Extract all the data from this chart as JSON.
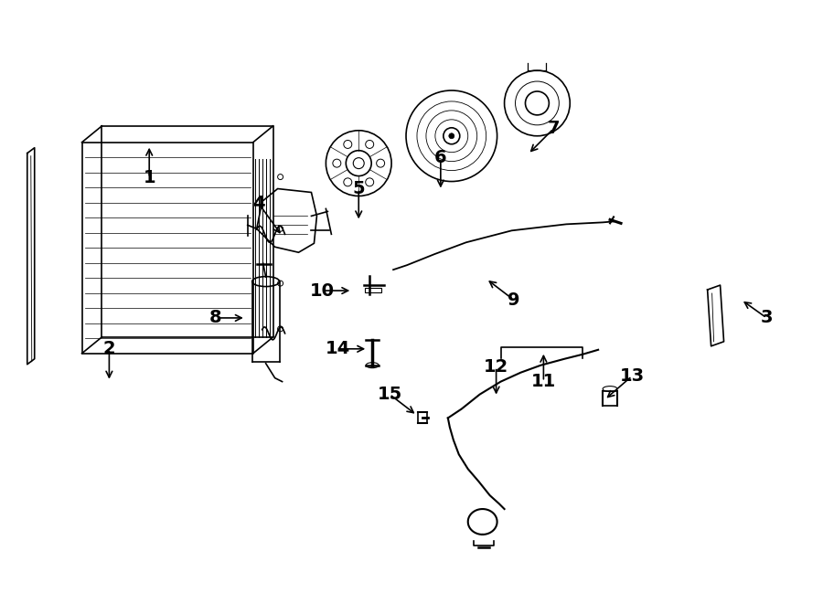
{
  "bg_color": "#ffffff",
  "line_color": "#000000",
  "figsize": [
    9.0,
    6.61
  ],
  "dpi": 100,
  "labels": [
    [
      "1",
      162,
      158,
      0,
      -28
    ],
    [
      "2",
      118,
      418,
      0,
      28
    ],
    [
      "3",
      812,
      328,
      20,
      -12
    ],
    [
      "4",
      308,
      258,
      -18,
      28
    ],
    [
      "5",
      392,
      242,
      0,
      28
    ],
    [
      "6",
      482,
      208,
      0,
      28
    ],
    [
      "7",
      578,
      168,
      20,
      20
    ],
    [
      "8",
      268,
      348,
      -25,
      0
    ],
    [
      "9",
      532,
      305,
      22,
      -15
    ],
    [
      "10",
      385,
      318,
      -25,
      0
    ],
    [
      "11",
      595,
      385,
      0,
      -25
    ],
    [
      "12",
      543,
      435,
      0,
      25
    ],
    [
      "13",
      662,
      438,
      22,
      18
    ],
    [
      "14",
      402,
      382,
      -25,
      0
    ],
    [
      "15",
      456,
      455,
      -22,
      15
    ]
  ]
}
